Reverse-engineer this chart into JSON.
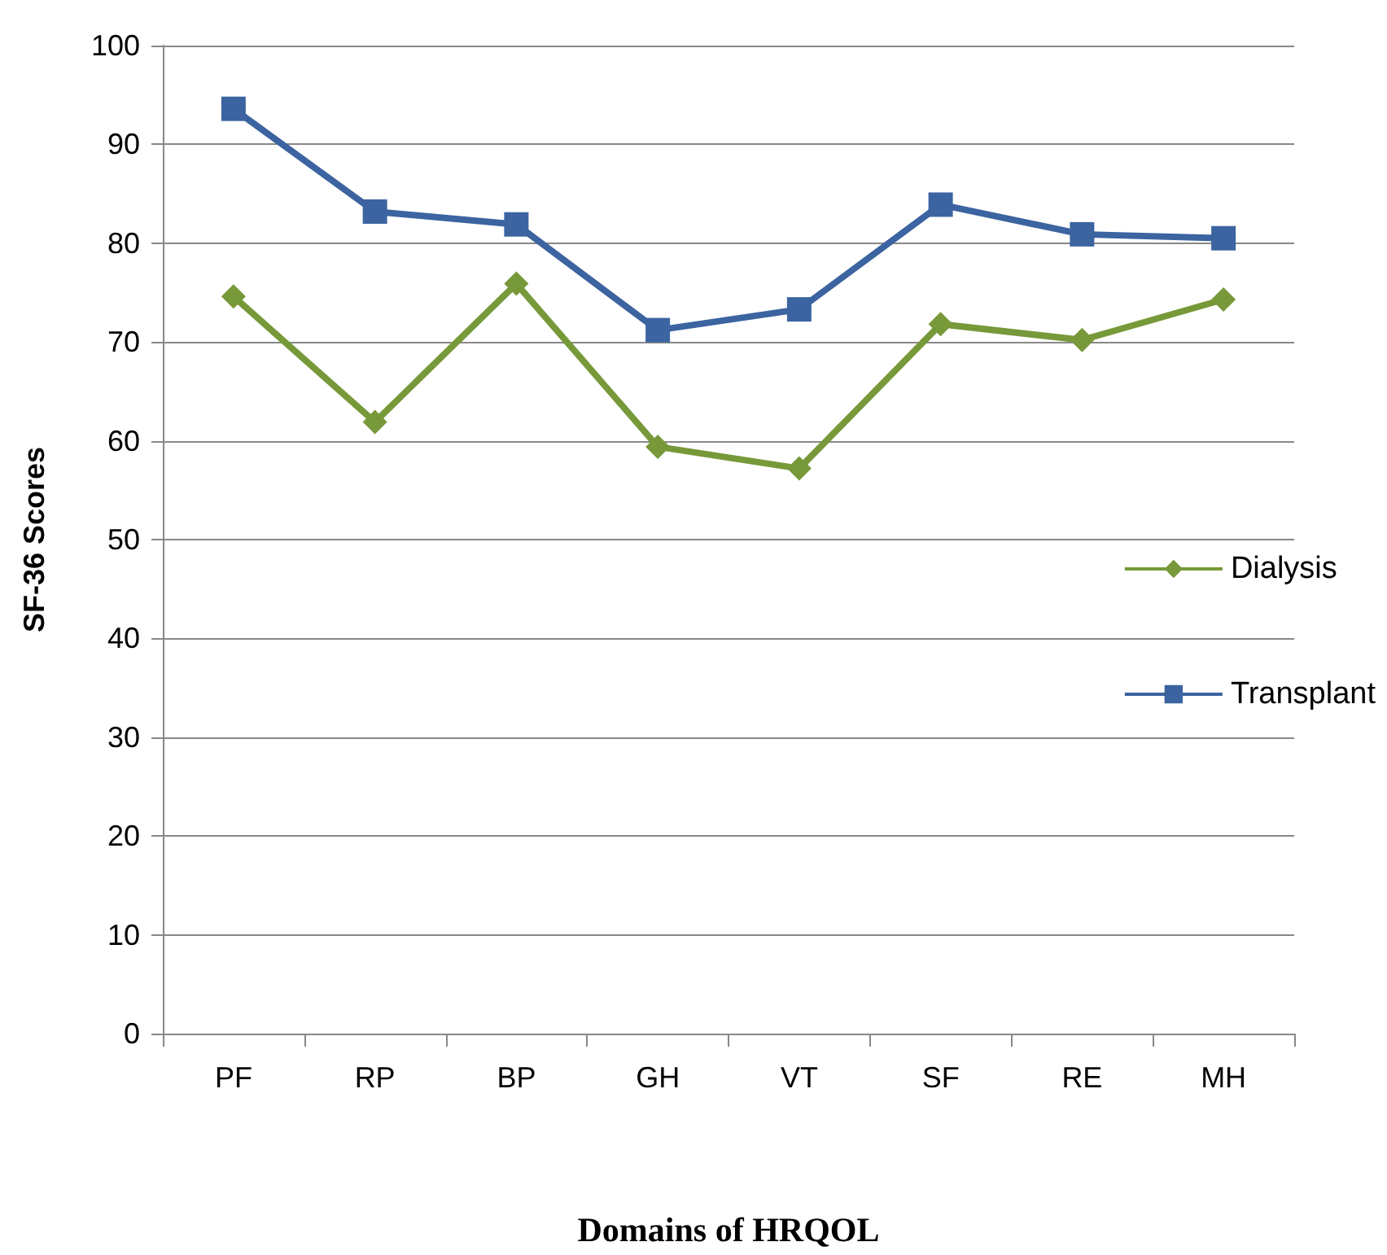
{
  "chart_data": {
    "type": "line",
    "xlabel": "Domains of HRQOL",
    "ylabel": "SF-36 Scores",
    "categories": [
      "PF",
      "RP",
      "BP",
      "GH",
      "VT",
      "SF",
      "RE",
      "MH"
    ],
    "series": [
      {
        "name": "Dialysis",
        "color": "#77993a",
        "marker": "diamond",
        "values": [
          74.6,
          61.9,
          75.9,
          59.4,
          57.2,
          71.8,
          70.2,
          74.3
        ]
      },
      {
        "name": "Transplant",
        "color": "#3b64a0",
        "marker": "square",
        "values": [
          93.6,
          83.2,
          81.9,
          71.2,
          73.3,
          83.9,
          80.9,
          80.5
        ]
      }
    ],
    "ylim": [
      0,
      100
    ],
    "yticks": [
      0,
      10,
      20,
      30,
      40,
      50,
      60,
      70,
      80,
      90,
      100
    ],
    "grid": "y",
    "legend": "right",
    "line_style": "solid"
  }
}
